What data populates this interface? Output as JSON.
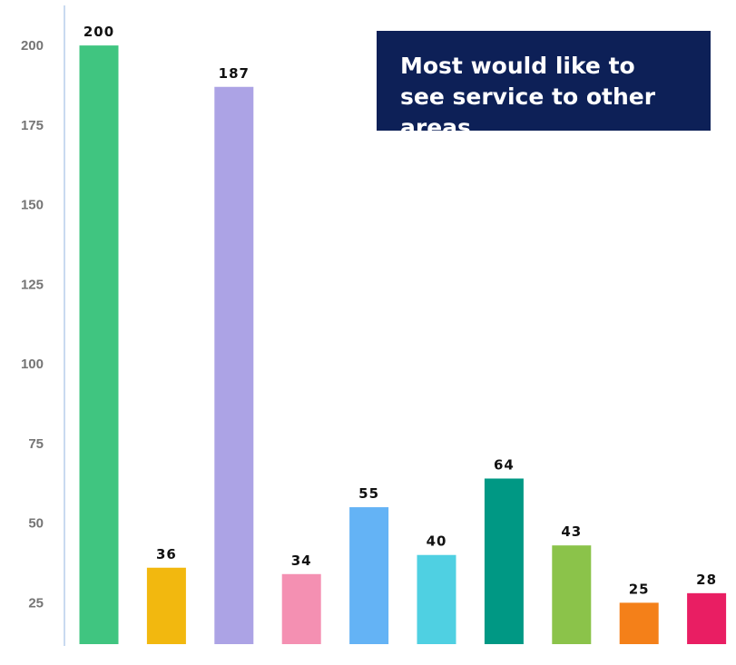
{
  "callout": {
    "text": "Most would like to see service to other areas"
  },
  "chart_data": {
    "type": "bar",
    "categories": [
      "",
      "",
      "",
      "",
      "",
      "",
      "",
      "",
      "",
      ""
    ],
    "values": [
      200,
      36,
      187,
      34,
      55,
      40,
      64,
      43,
      25,
      28
    ],
    "colors": [
      "#40c580",
      "#f2b80f",
      "#aca3e5",
      "#f490b2",
      "#64b3f5",
      "#4fd0e2",
      "#009884",
      "#8bc34a",
      "#f48019",
      "#e91e63"
    ],
    "yticks": [
      25,
      50,
      75,
      100,
      125,
      150,
      175,
      200
    ],
    "ylim": [
      12,
      212
    ],
    "grid": false,
    "legend": "none",
    "title": "",
    "xlabel": "",
    "ylabel": "",
    "accent": "#0d2057"
  }
}
